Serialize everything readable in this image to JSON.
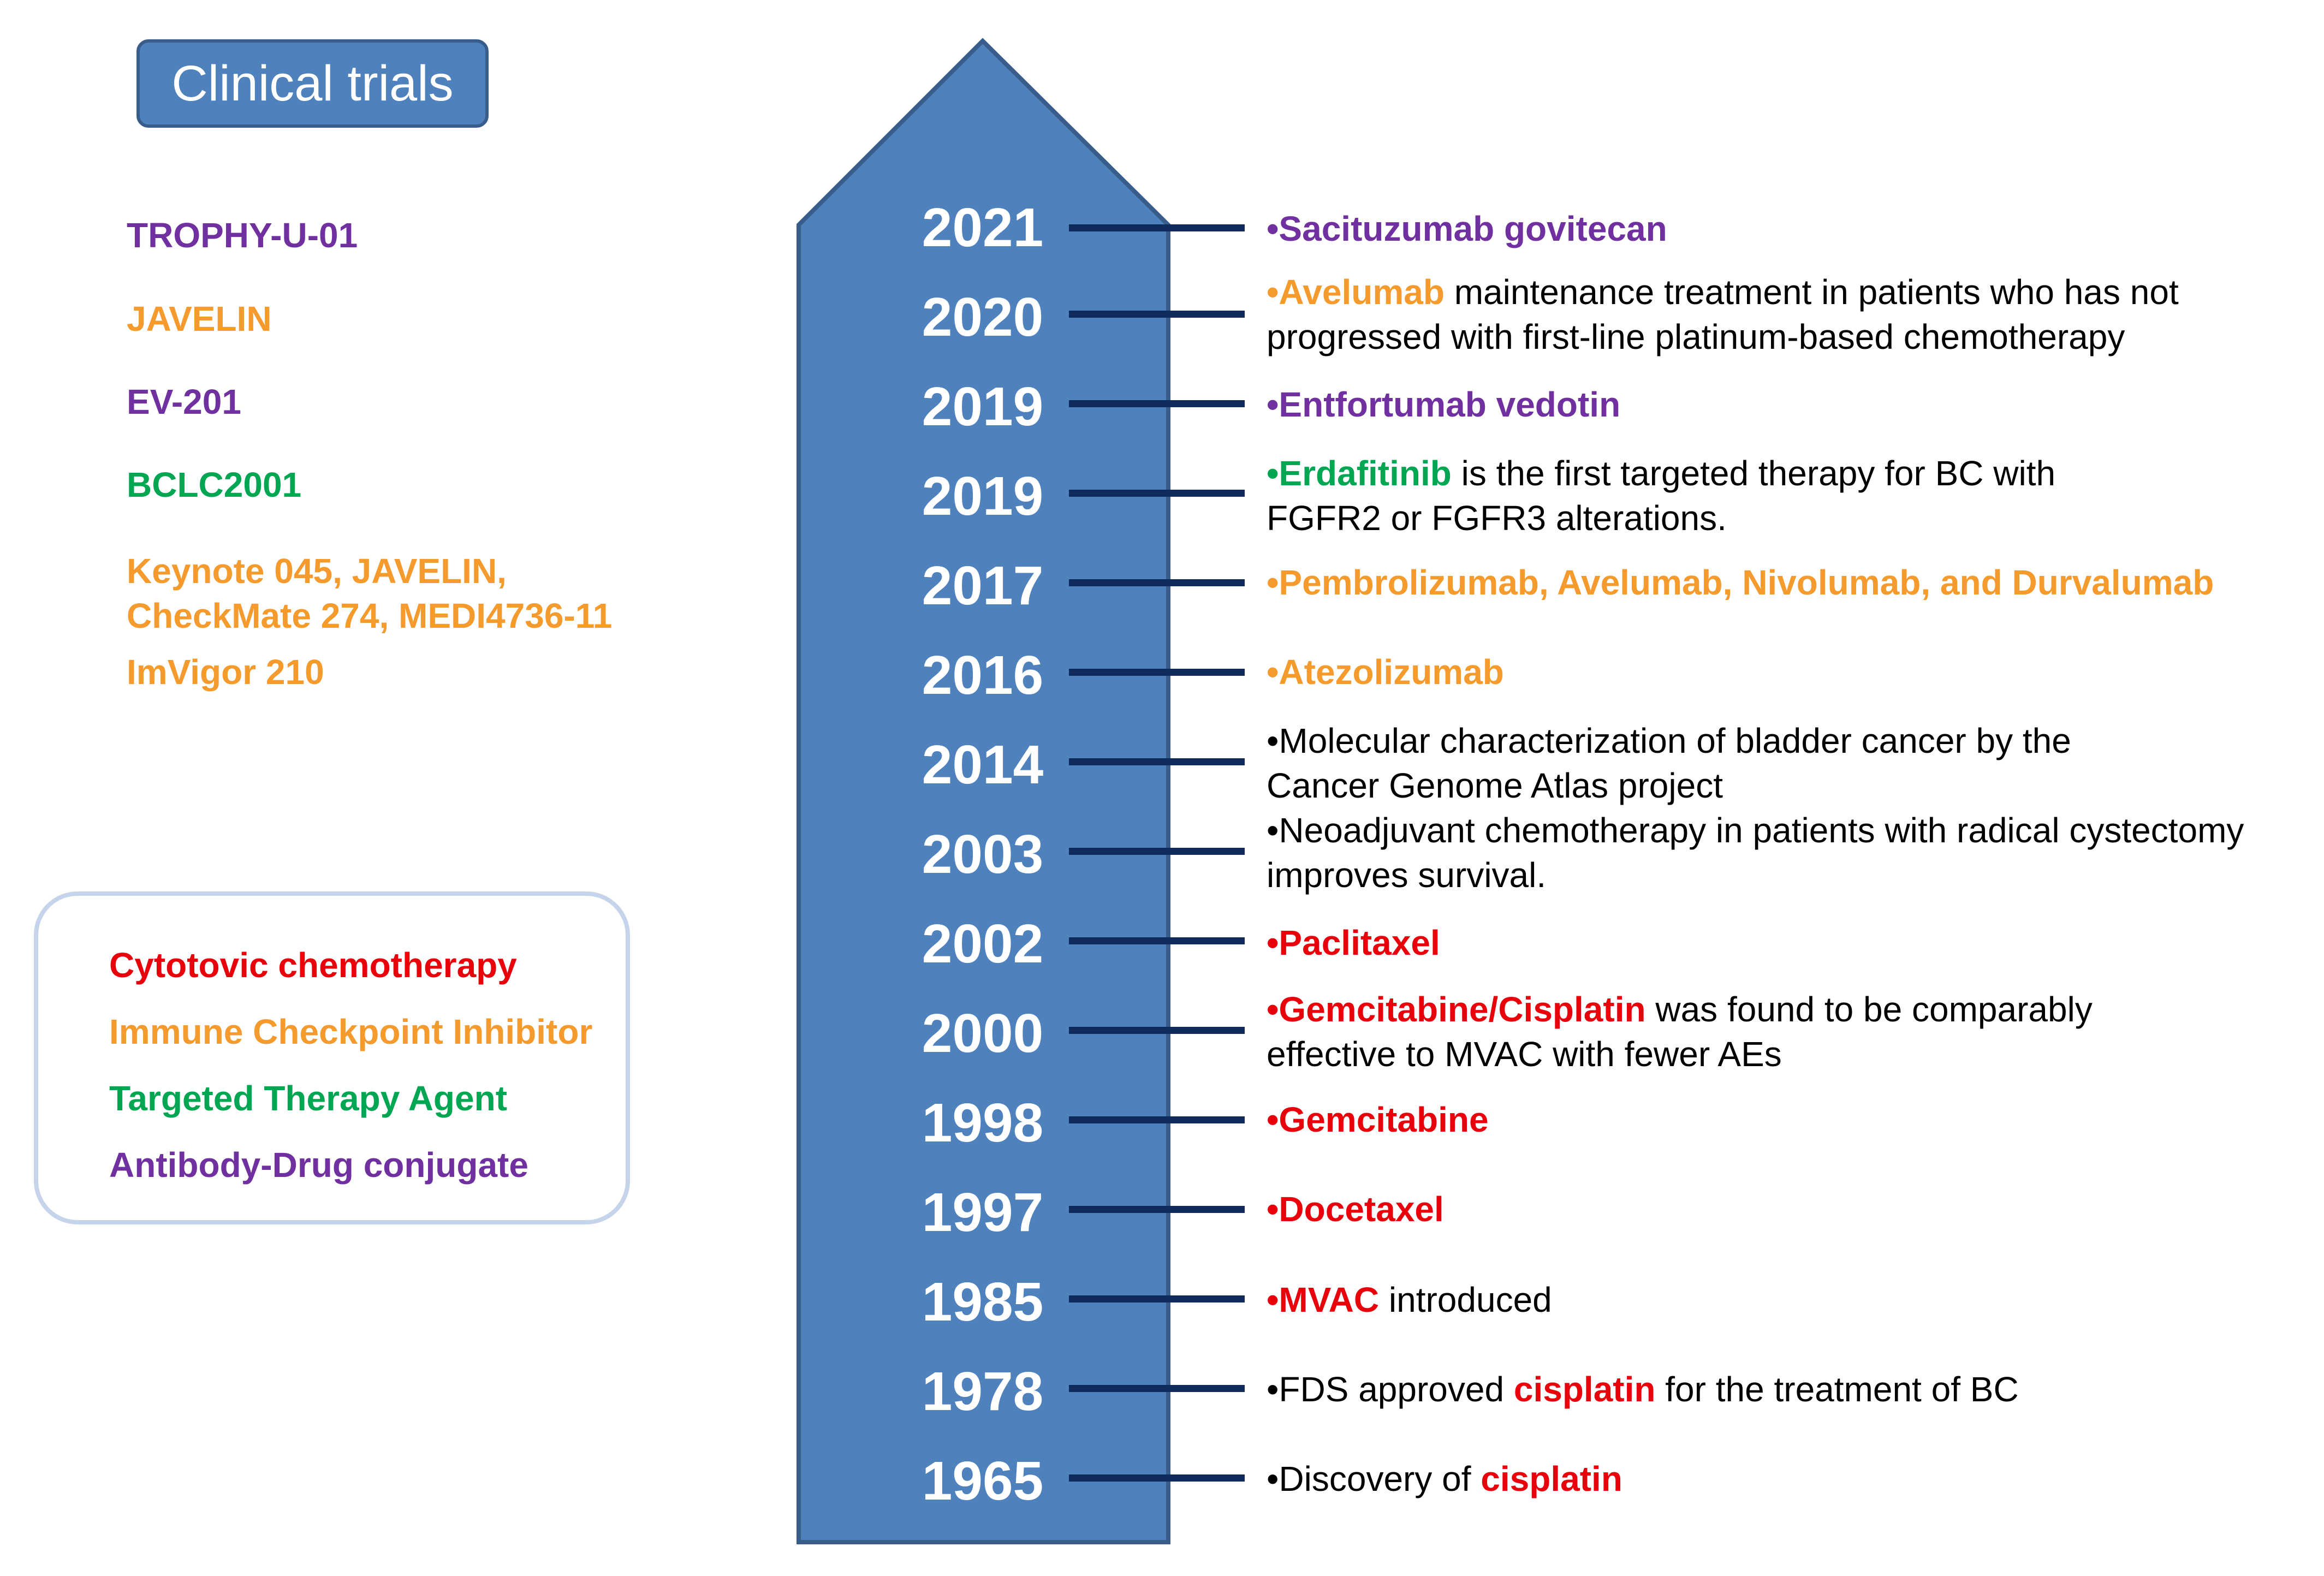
{
  "header": {
    "title": "Clinical trials"
  },
  "trials": [
    {
      "text": "TROPHY-U-01",
      "color": "#7030a0"
    },
    {
      "text": "JAVELIN",
      "color": "#f59a2c"
    },
    {
      "text": "EV-201",
      "color": "#7030a0"
    },
    {
      "text": "BCLC2001",
      "color": "#00a651"
    },
    {
      "text": "Keynote 045, JAVELIN,\nCheckMate 274, MEDI4736-11",
      "color": "#f59a2c"
    },
    {
      "text": "ImVigor 210",
      "color": "#f59a2c"
    }
  ],
  "legend": [
    {
      "label": "Cytotovic chemotherapy",
      "color": "#e8000b"
    },
    {
      "label": "Immune Checkpoint Inhibitor",
      "color": "#f59a2c"
    },
    {
      "label": "Targeted Therapy Agent",
      "color": "#00a651"
    },
    {
      "label": "Antibody-Drug conjugate",
      "color": "#7030a0"
    }
  ],
  "timeline": {
    "arrow_color": "#4f81bd",
    "connector_color": "#0f2b5b",
    "years": [
      "2021",
      "2020",
      "2019",
      "2019",
      "2017",
      "2016",
      "2014",
      "2003",
      "2002",
      "2000",
      "1998",
      "1997",
      "1985",
      "1978",
      "1965"
    ]
  },
  "events": {
    "e2021": {
      "drug": "•Sacituzumab govitecan"
    },
    "e2020": {
      "drug": "•Avelumab",
      "rest": " maintenance treatment in patients who has not",
      "line2": "progressed with first-line platinum-based chemotherapy"
    },
    "e2019a": {
      "drug": "•Entfortumab vedotin"
    },
    "e2019b": {
      "drug": "•Erdafitinib",
      "rest": " is the first targeted therapy for BC with",
      "line2": "FGFR2 or FGFR3 alterations."
    },
    "e2017": {
      "drug": "•Pembrolizumab, Avelumab, Nivolumab, and Durvalumab"
    },
    "e2016": {
      "drug": "•Atezolizumab"
    },
    "e2014": {
      "line1": "•Molecular characterization of bladder cancer by the",
      "line2": "Cancer Genome Atlas project"
    },
    "e2003": {
      "line1": "•Neoadjuvant chemotherapy in patients with radical cystectomy",
      "line2": "improves survival."
    },
    "e2002": {
      "drug": "•Paclitaxel"
    },
    "e2000": {
      "drug": "•Gemcitabine/Cisplatin",
      "rest": " was found to be comparably",
      "line2": "effective to MVAC with fewer AEs"
    },
    "e1998": {
      "drug": "•Gemcitabine"
    },
    "e1997": {
      "drug": "•Docetaxel"
    },
    "e1985": {
      "drug": "•MVAC",
      "rest": " introduced"
    },
    "e1978": {
      "pre": "•FDS approved ",
      "drug": "cisplatin",
      "rest": " for the treatment of BC"
    },
    "e1965": {
      "pre": "•Discovery of ",
      "drug": "cisplatin"
    }
  }
}
